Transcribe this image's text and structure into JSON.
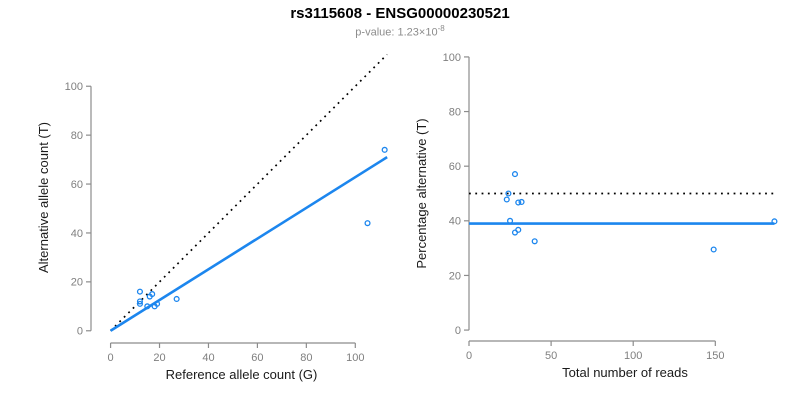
{
  "header": {
    "title": "rs3115608 - ENSG00000230521",
    "subtitle_prefix": "p-value: 1.23×10",
    "subtitle_exponent": "-8"
  },
  "theme": {
    "axis_color": "#8c8c8c",
    "tick_label_color": "#7f7f7f",
    "axis_title_color": "#1a1a1a",
    "point_color": "#1C86EE",
    "fit_line_color": "#1C86EE",
    "reference_line_color": "#000000",
    "background": "#ffffff"
  },
  "chart_data": [
    {
      "type": "scatter",
      "panel": "left",
      "panel_name": "allele-count-scatter",
      "xlabel": "Reference allele count (G)",
      "ylabel": "Alternative allele count (T)",
      "xticks": [
        0,
        20,
        40,
        60,
        80,
        100
      ],
      "yticks": [
        0,
        20,
        40,
        60,
        80,
        100
      ],
      "xlim": [
        -8,
        115
      ],
      "ylim": [
        -5,
        114
      ],
      "points": [
        {
          "x": 12,
          "y": 16
        },
        {
          "x": 12,
          "y": 12
        },
        {
          "x": 12,
          "y": 11
        },
        {
          "x": 16,
          "y": 14
        },
        {
          "x": 17,
          "y": 15
        },
        {
          "x": 15,
          "y": 10
        },
        {
          "x": 19,
          "y": 11
        },
        {
          "x": 18,
          "y": 10
        },
        {
          "x": 27,
          "y": 13
        },
        {
          "x": 105,
          "y": 44
        },
        {
          "x": 112,
          "y": 74
        }
      ],
      "lines": [
        {
          "name": "identity-line",
          "style": "dotted",
          "color": "#000000",
          "width": 1.7,
          "x1": 0,
          "y1": 0,
          "x2": 113,
          "y2": 113
        },
        {
          "name": "fit-line",
          "style": "solid",
          "color": "#1C86EE",
          "width": 2.6,
          "x1": 0,
          "y1": 0,
          "x2": 113,
          "y2": 71
        }
      ]
    },
    {
      "type": "scatter",
      "panel": "right",
      "panel_name": "percentage-vs-reads-scatter",
      "xlabel": "Total number of reads",
      "ylabel": "Percentage alternative (T)",
      "xticks": [
        0,
        50,
        100,
        150
      ],
      "yticks": [
        0,
        20,
        40,
        60,
        80,
        100
      ],
      "xlim": [
        0,
        190
      ],
      "ylim": [
        -4,
        104
      ],
      "points": [
        {
          "x": 28,
          "y": 57.1
        },
        {
          "x": 24,
          "y": 50.0
        },
        {
          "x": 23,
          "y": 47.8
        },
        {
          "x": 30,
          "y": 46.7
        },
        {
          "x": 32,
          "y": 46.9
        },
        {
          "x": 25,
          "y": 40.0
        },
        {
          "x": 30,
          "y": 36.7
        },
        {
          "x": 28,
          "y": 35.7
        },
        {
          "x": 40,
          "y": 32.5
        },
        {
          "x": 149,
          "y": 29.5
        },
        {
          "x": 186,
          "y": 39.8
        }
      ],
      "lines": [
        {
          "name": "expected-50pct-line",
          "style": "dotted",
          "color": "#000000",
          "width": 1.7,
          "x1": 0,
          "y1": 50,
          "x2": 186,
          "y2": 50
        },
        {
          "name": "mean-pct-line",
          "style": "solid",
          "color": "#1C86EE",
          "width": 2.6,
          "x1": 0,
          "y1": 39,
          "x2": 186,
          "y2": 39
        }
      ]
    }
  ]
}
